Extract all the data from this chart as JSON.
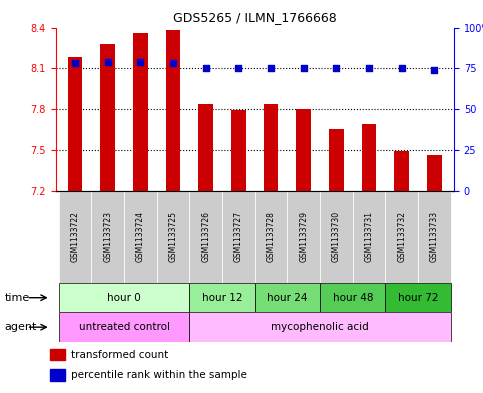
{
  "title": "GDS5265 / ILMN_1766668",
  "samples": [
    "GSM1133722",
    "GSM1133723",
    "GSM1133724",
    "GSM1133725",
    "GSM1133726",
    "GSM1133727",
    "GSM1133728",
    "GSM1133729",
    "GSM1133730",
    "GSM1133731",
    "GSM1133732",
    "GSM1133733"
  ],
  "bar_values": [
    8.18,
    8.28,
    8.36,
    8.38,
    7.84,
    7.79,
    7.84,
    7.8,
    7.65,
    7.69,
    7.49,
    7.46
  ],
  "percentile_values": [
    78,
    79,
    79,
    78,
    75,
    75,
    75,
    75,
    75,
    75,
    75,
    74
  ],
  "bar_color": "#cc0000",
  "percentile_color": "#0000cc",
  "y_min": 7.2,
  "y_max": 8.4,
  "y_ticks": [
    7.2,
    7.5,
    7.8,
    8.1,
    8.4
  ],
  "y2_ticks": [
    0,
    25,
    50,
    75,
    100
  ],
  "y2_tick_labels": [
    "0",
    "25",
    "50",
    "75",
    "100%"
  ],
  "dotted_lines": [
    8.1,
    7.8,
    7.5
  ],
  "time_groups": [
    {
      "label": "hour 0",
      "start": 0,
      "end": 4,
      "color": "#ccffcc"
    },
    {
      "label": "hour 12",
      "start": 4,
      "end": 6,
      "color": "#99ee99"
    },
    {
      "label": "hour 24",
      "start": 6,
      "end": 8,
      "color": "#77dd77"
    },
    {
      "label": "hour 48",
      "start": 8,
      "end": 10,
      "color": "#55cc55"
    },
    {
      "label": "hour 72",
      "start": 10,
      "end": 12,
      "color": "#33bb33"
    }
  ],
  "agent_groups": [
    {
      "label": "untreated control",
      "start": 0,
      "end": 4,
      "color": "#ff99ff"
    },
    {
      "label": "mycophenolic acid",
      "start": 4,
      "end": 12,
      "color": "#ffbbff"
    }
  ],
  "legend_items": [
    {
      "label": "transformed count",
      "color": "#cc0000"
    },
    {
      "label": "percentile rank within the sample",
      "color": "#0000cc"
    }
  ],
  "bg_color": "#ffffff",
  "plot_bg": "#ffffff",
  "sample_box_color": "#cccccc",
  "bar_width": 0.45,
  "fig_width": 4.83,
  "fig_height": 3.93
}
